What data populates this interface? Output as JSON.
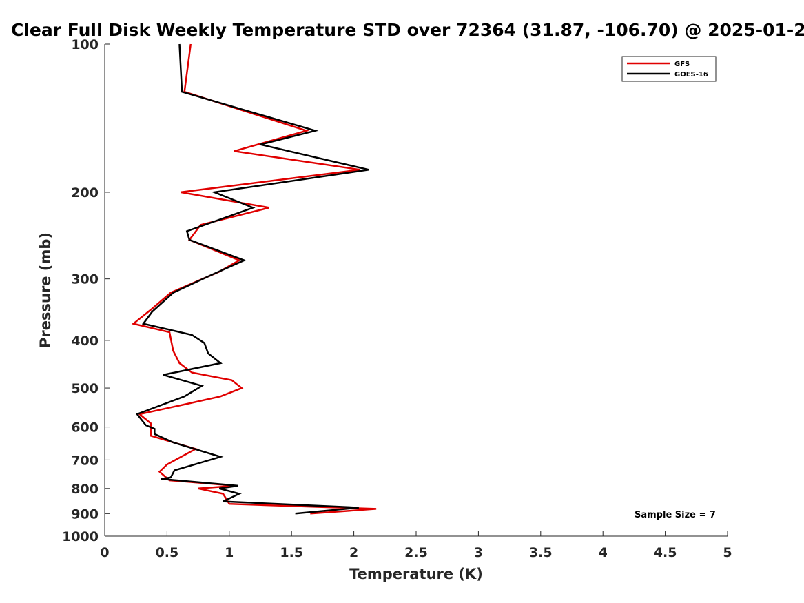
{
  "chart_data": {
    "type": "line",
    "title": "Clear Full Disk Weekly Temperature STD over 72364 (31.87, -106.70) @ 2025-01-2",
    "xlabel": "Temperature (K)",
    "ylabel": "Pressure (mb)",
    "xlim": [
      0,
      5
    ],
    "ylim": [
      1000,
      100
    ],
    "yscale": "log-pressure",
    "xticks": [
      "0",
      "0.5",
      "1",
      "1.5",
      "2",
      "2.5",
      "3",
      "3.5",
      "4",
      "4.5",
      "5"
    ],
    "yticks": [
      "100",
      "200",
      "300",
      "400",
      "500",
      "600",
      "700",
      "800",
      "900",
      "1000"
    ],
    "grid": false,
    "legend_position": "top-right",
    "annotation": "Sample Size = 7",
    "series": [
      {
        "name": "GFS",
        "color": "#e00000",
        "points": [
          [
            0.69,
            100
          ],
          [
            0.64,
            125
          ],
          [
            1.62,
            150
          ],
          [
            1.04,
            165
          ],
          [
            2.05,
            180
          ],
          [
            0.61,
            200
          ],
          [
            1.32,
            215
          ],
          [
            0.77,
            233
          ],
          [
            0.68,
            250
          ],
          [
            1.08,
            275
          ],
          [
            0.92,
            290
          ],
          [
            0.53,
            320
          ],
          [
            0.38,
            345
          ],
          [
            0.23,
            370
          ],
          [
            0.52,
            385
          ],
          [
            0.55,
            420
          ],
          [
            0.6,
            445
          ],
          [
            0.7,
            465
          ],
          [
            1.02,
            482
          ],
          [
            1.1,
            500
          ],
          [
            0.93,
            520
          ],
          [
            0.64,
            540
          ],
          [
            0.28,
            565
          ],
          [
            0.37,
            590
          ],
          [
            0.37,
            625
          ],
          [
            0.73,
            665
          ],
          [
            0.5,
            715
          ],
          [
            0.44,
            740
          ],
          [
            0.52,
            770
          ],
          [
            1.05,
            790
          ],
          [
            0.75,
            800
          ],
          [
            0.95,
            820
          ],
          [
            1.0,
            860
          ],
          [
            2.18,
            880
          ],
          [
            1.65,
            900
          ]
        ]
      },
      {
        "name": "GOES-16",
        "color": "#000000",
        "points": [
          [
            0.6,
            100
          ],
          [
            0.62,
            125
          ],
          [
            1.69,
            150
          ],
          [
            1.25,
            160
          ],
          [
            2.12,
            180
          ],
          [
            0.88,
            200
          ],
          [
            1.19,
            215
          ],
          [
            0.66,
            240
          ],
          [
            0.68,
            250
          ],
          [
            1.12,
            275
          ],
          [
            0.85,
            295
          ],
          [
            0.55,
            320
          ],
          [
            0.38,
            350
          ],
          [
            0.31,
            370
          ],
          [
            0.7,
            390
          ],
          [
            0.8,
            405
          ],
          [
            0.83,
            425
          ],
          [
            0.93,
            445
          ],
          [
            0.47,
            470
          ],
          [
            0.78,
            495
          ],
          [
            0.64,
            520
          ],
          [
            0.26,
            565
          ],
          [
            0.33,
            595
          ],
          [
            0.4,
            605
          ],
          [
            0.4,
            620
          ],
          [
            0.55,
            645
          ],
          [
            0.93,
            690
          ],
          [
            0.56,
            735
          ],
          [
            0.53,
            760
          ],
          [
            0.45,
            765
          ],
          [
            1.07,
            790
          ],
          [
            0.92,
            800
          ],
          [
            1.08,
            820
          ],
          [
            0.95,
            850
          ],
          [
            2.04,
            875
          ],
          [
            1.53,
            900
          ]
        ]
      }
    ]
  }
}
